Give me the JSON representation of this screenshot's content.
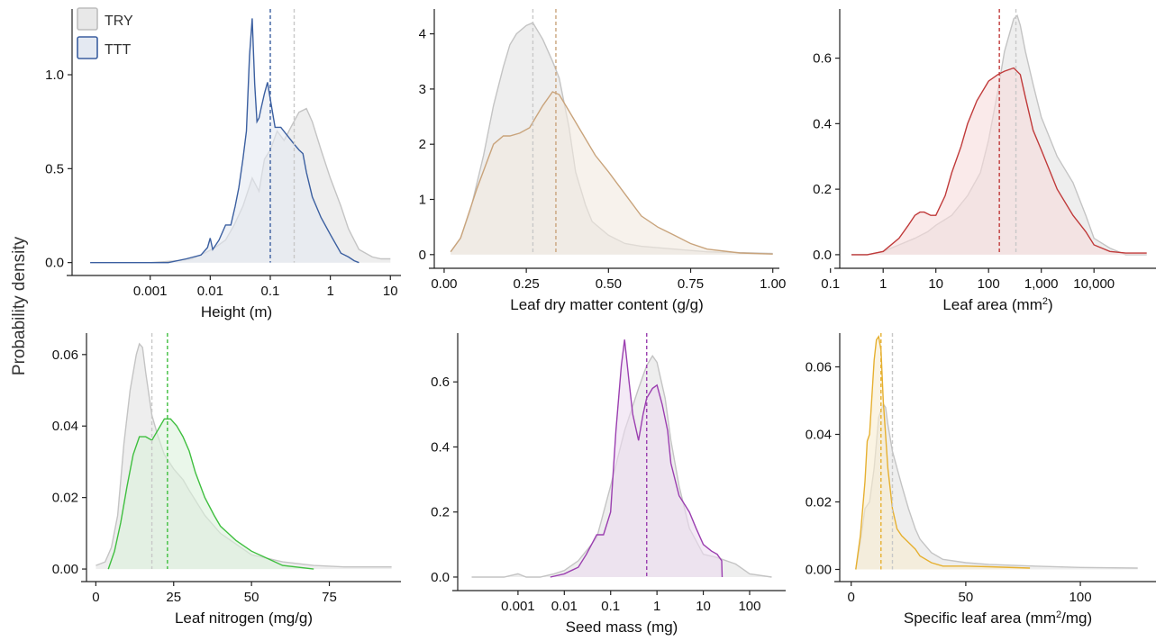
{
  "figure": {
    "y_axis_label": "Probability density",
    "legend": {
      "placement": "top-left",
      "entries": [
        {
          "name": "TRY",
          "fill": "#e8e8e8",
          "stroke": "#bdbdbd"
        },
        {
          "name": "TTT",
          "fill": "#e4e9f2",
          "stroke": "#3b5fa0"
        }
      ]
    }
  },
  "chart_data": [
    {
      "type": "area",
      "xlabel": "Height (m)",
      "xscale": "log",
      "xlim": [
        5e-05,
        15
      ],
      "ylim": [
        -0.04,
        1.35
      ],
      "xticks": [
        {
          "v": 0.001,
          "label": "0.001"
        },
        {
          "v": 0.01,
          "label": "0.01"
        },
        {
          "v": 0.1,
          "label": "0.1"
        },
        {
          "v": 1,
          "label": "1"
        },
        {
          "v": 10,
          "label": "10"
        }
      ],
      "yticks": [
        {
          "v": 0,
          "label": "0.0"
        },
        {
          "v": 0.5,
          "label": "0.5"
        },
        {
          "v": 1.0,
          "label": "1.0"
        }
      ],
      "color": "#3b5fa0",
      "fill": "#e4e9f2",
      "series": [
        {
          "name": "TRY",
          "x": [
            0.001,
            0.003,
            0.005,
            0.008,
            0.012,
            0.018,
            0.025,
            0.035,
            0.05,
            0.065,
            0.08,
            0.1,
            0.13,
            0.17,
            0.22,
            0.3,
            0.4,
            0.5,
            0.7,
            1,
            1.5,
            2,
            3,
            5,
            7,
            10
          ],
          "y": [
            0.0,
            0.01,
            0.02,
            0.05,
            0.08,
            0.12,
            0.2,
            0.3,
            0.45,
            0.38,
            0.55,
            0.6,
            0.7,
            0.65,
            0.72,
            0.8,
            0.82,
            0.75,
            0.6,
            0.45,
            0.3,
            0.18,
            0.07,
            0.03,
            0.02,
            0.02
          ]
        },
        {
          "name": "TTT",
          "x": [
            0.0001,
            0.0005,
            0.001,
            0.002,
            0.004,
            0.007,
            0.009,
            0.01,
            0.011,
            0.014,
            0.018,
            0.022,
            0.026,
            0.03,
            0.035,
            0.04,
            0.045,
            0.05,
            0.055,
            0.06,
            0.065,
            0.07,
            0.08,
            0.09,
            0.1,
            0.12,
            0.15,
            0.2,
            0.25,
            0.3,
            0.35,
            0.4,
            0.5,
            0.7,
            1,
            1.5,
            2,
            2.5,
            3
          ],
          "y": [
            0.0,
            0.0,
            0.0,
            0.0,
            0.02,
            0.04,
            0.08,
            0.13,
            0.07,
            0.12,
            0.2,
            0.2,
            0.3,
            0.4,
            0.55,
            0.7,
            1.1,
            1.3,
            0.95,
            0.75,
            0.77,
            0.82,
            0.9,
            0.96,
            0.87,
            0.72,
            0.72,
            0.67,
            0.63,
            0.6,
            0.58,
            0.48,
            0.35,
            0.24,
            0.15,
            0.05,
            0.03,
            0.01,
            0.0
          ]
        }
      ],
      "medians": [
        {
          "series": "TRY",
          "value": 0.25
        },
        {
          "series": "TTT",
          "value": 0.1
        }
      ]
    },
    {
      "type": "area",
      "xlabel": "Leaf dry matter content (g/g)",
      "xscale": "linear",
      "xlim": [
        -0.03,
        1.02
      ],
      "ylim": [
        -0.15,
        4.45
      ],
      "xticks": [
        {
          "v": 0,
          "label": "0.00"
        },
        {
          "v": 0.25,
          "label": "0.25"
        },
        {
          "v": 0.5,
          "label": "0.50"
        },
        {
          "v": 0.75,
          "label": "0.75"
        },
        {
          "v": 1,
          "label": "1.00"
        }
      ],
      "yticks": [
        {
          "v": 0,
          "label": "0"
        },
        {
          "v": 1,
          "label": "1"
        },
        {
          "v": 2,
          "label": "2"
        },
        {
          "v": 3,
          "label": "3"
        },
        {
          "v": 4,
          "label": "4"
        }
      ],
      "color": "#c9a47c",
      "fill": "#f1e9df",
      "series": [
        {
          "name": "TRY",
          "x": [
            0.02,
            0.05,
            0.08,
            0.12,
            0.15,
            0.18,
            0.2,
            0.22,
            0.25,
            0.27,
            0.3,
            0.33,
            0.35,
            0.38,
            0.4,
            0.43,
            0.45,
            0.5,
            0.55,
            0.6,
            0.7,
            0.8,
            1.0
          ],
          "y": [
            0.05,
            0.3,
            0.8,
            1.8,
            2.7,
            3.4,
            3.8,
            4.0,
            4.15,
            4.2,
            3.9,
            3.5,
            3.2,
            2.3,
            1.5,
            0.9,
            0.6,
            0.35,
            0.2,
            0.15,
            0.1,
            0.05,
            0.02
          ]
        },
        {
          "name": "TTT",
          "x": [
            0.02,
            0.05,
            0.1,
            0.15,
            0.18,
            0.2,
            0.23,
            0.26,
            0.28,
            0.3,
            0.33,
            0.35,
            0.38,
            0.42,
            0.46,
            0.5,
            0.55,
            0.6,
            0.65,
            0.7,
            0.75,
            0.8,
            0.9,
            1.0
          ],
          "y": [
            0.05,
            0.3,
            1.2,
            2.0,
            2.15,
            2.15,
            2.2,
            2.3,
            2.5,
            2.7,
            2.95,
            2.9,
            2.6,
            2.2,
            1.8,
            1.5,
            1.1,
            0.7,
            0.5,
            0.35,
            0.2,
            0.1,
            0.03,
            0.01
          ]
        }
      ],
      "medians": [
        {
          "series": "TRY",
          "value": 0.27
        },
        {
          "series": "TTT",
          "value": 0.34
        }
      ]
    },
    {
      "type": "area",
      "xlabel": "Leaf area (mm²)",
      "xscale": "log",
      "xlim": [
        0.15,
        150000
      ],
      "ylim": [
        -0.025,
        0.75
      ],
      "xticks": [
        {
          "v": 0.1,
          "label": "0.1"
        },
        {
          "v": 1,
          "label": "1"
        },
        {
          "v": 10,
          "label": "10"
        },
        {
          "v": 100,
          "label": "100"
        },
        {
          "v": 1000,
          "label": "1,000"
        },
        {
          "v": 10000,
          "label": "10,000"
        }
      ],
      "yticks": [
        {
          "v": 0,
          "label": "0.0"
        },
        {
          "v": 0.2,
          "label": "0.2"
        },
        {
          "v": 0.4,
          "label": "0.4"
        },
        {
          "v": 0.6,
          "label": "0.6"
        }
      ],
      "color": "#c03a3a",
      "fill": "#f6dcdc",
      "series": [
        {
          "name": "TRY",
          "x": [
            0.25,
            0.5,
            1,
            2,
            4,
            7,
            10,
            20,
            40,
            70,
            100,
            150,
            200,
            300,
            350,
            400,
            500,
            700,
            1000,
            2000,
            4000,
            7000,
            10000,
            20000,
            40000,
            100000
          ],
          "y": [
            0.0,
            0.0,
            0.01,
            0.03,
            0.05,
            0.07,
            0.09,
            0.12,
            0.18,
            0.25,
            0.35,
            0.5,
            0.62,
            0.72,
            0.73,
            0.7,
            0.62,
            0.52,
            0.42,
            0.3,
            0.22,
            0.12,
            0.05,
            0.02,
            0.0,
            0.0
          ]
        },
        {
          "name": "TTT",
          "x": [
            0.25,
            0.5,
            1,
            2,
            3,
            4,
            5,
            6,
            8,
            10,
            15,
            20,
            30,
            40,
            60,
            100,
            150,
            200,
            300,
            400,
            500,
            700,
            1000,
            2000,
            4000,
            7000,
            10000,
            20000,
            40000,
            100000
          ],
          "y": [
            0.0,
            0.0,
            0.01,
            0.05,
            0.09,
            0.12,
            0.13,
            0.13,
            0.12,
            0.12,
            0.18,
            0.25,
            0.33,
            0.4,
            0.47,
            0.53,
            0.55,
            0.56,
            0.57,
            0.55,
            0.48,
            0.38,
            0.32,
            0.2,
            0.12,
            0.07,
            0.03,
            0.01,
            0.005,
            0.005
          ]
        }
      ],
      "medians": [
        {
          "series": "TRY",
          "value": 330
        },
        {
          "series": "TTT",
          "value": 160
        }
      ]
    },
    {
      "type": "area",
      "xlabel": "Leaf nitrogen (mg/g)",
      "xscale": "linear",
      "xlim": [
        -3,
        98
      ],
      "ylim": [
        -0.002,
        0.066
      ],
      "xticks": [
        {
          "v": 0,
          "label": "0"
        },
        {
          "v": 25,
          "label": "25"
        },
        {
          "v": 50,
          "label": "50"
        },
        {
          "v": 75,
          "label": "75"
        }
      ],
      "yticks": [
        {
          "v": 0,
          "label": "0.00"
        },
        {
          "v": 0.02,
          "label": "0.02"
        },
        {
          "v": 0.04,
          "label": "0.04"
        },
        {
          "v": 0.06,
          "label": "0.06"
        }
      ],
      "color": "#3fbf3f",
      "fill": "#dcf2dc",
      "series": [
        {
          "name": "TRY",
          "x": [
            0,
            3,
            5,
            7,
            9,
            11,
            13,
            14,
            15,
            16,
            18,
            20,
            22,
            25,
            28,
            30,
            35,
            40,
            45,
            50,
            60,
            70,
            80,
            95
          ],
          "y": [
            0.001,
            0.002,
            0.006,
            0.015,
            0.035,
            0.05,
            0.06,
            0.063,
            0.062,
            0.055,
            0.043,
            0.037,
            0.032,
            0.028,
            0.025,
            0.022,
            0.015,
            0.01,
            0.007,
            0.004,
            0.002,
            0.001,
            0.0006,
            0.0006
          ]
        },
        {
          "name": "TTT",
          "x": [
            4,
            6,
            8,
            10,
            12,
            14,
            16,
            18,
            20,
            22,
            24,
            26,
            28,
            30,
            32,
            35,
            38,
            40,
            45,
            50,
            55,
            60,
            70
          ],
          "y": [
            0.0,
            0.005,
            0.013,
            0.023,
            0.032,
            0.037,
            0.037,
            0.036,
            0.039,
            0.042,
            0.042,
            0.04,
            0.037,
            0.033,
            0.027,
            0.02,
            0.015,
            0.012,
            0.008,
            0.005,
            0.003,
            0.001,
            0.0
          ]
        }
      ],
      "medians": [
        {
          "series": "TRY",
          "value": 18
        },
        {
          "series": "TTT",
          "value": 23
        }
      ]
    },
    {
      "type": "area",
      "xlabel": "Seed mass (mg)",
      "xscale": "log",
      "xlim": [
        5e-05,
        600
      ],
      "ylim": [
        -0.025,
        0.75
      ],
      "xticks": [
        {
          "v": 0.001,
          "label": "0.001"
        },
        {
          "v": 0.01,
          "label": "0.01"
        },
        {
          "v": 0.1,
          "label": "0.1"
        },
        {
          "v": 1,
          "label": "1"
        },
        {
          "v": 10,
          "label": "10"
        },
        {
          "v": 100,
          "label": "100"
        }
      ],
      "yticks": [
        {
          "v": 0,
          "label": "0.0"
        },
        {
          "v": 0.2,
          "label": "0.2"
        },
        {
          "v": 0.4,
          "label": "0.4"
        },
        {
          "v": 0.6,
          "label": "0.6"
        }
      ],
      "color": "#9b3fb0",
      "fill": "#ecdcf0",
      "series": [
        {
          "name": "TRY",
          "x": [
            0.0001,
            0.0005,
            0.001,
            0.0015,
            0.003,
            0.006,
            0.01,
            0.02,
            0.05,
            0.1,
            0.2,
            0.4,
            0.6,
            0.8,
            1,
            1.5,
            2,
            3,
            5,
            10,
            20,
            50,
            100,
            300
          ],
          "y": [
            0.0,
            0.0,
            0.01,
            0.0,
            0.0,
            0.01,
            0.02,
            0.05,
            0.12,
            0.28,
            0.45,
            0.58,
            0.65,
            0.68,
            0.66,
            0.55,
            0.42,
            0.28,
            0.15,
            0.07,
            0.06,
            0.04,
            0.01,
            0.0
          ]
        },
        {
          "name": "TTT",
          "x": [
            0.005,
            0.01,
            0.02,
            0.03,
            0.05,
            0.07,
            0.1,
            0.13,
            0.17,
            0.2,
            0.25,
            0.3,
            0.4,
            0.5,
            0.6,
            0.8,
            1,
            1.3,
            1.7,
            2,
            3,
            5,
            7,
            10,
            15,
            20,
            25,
            25.5
          ],
          "y": [
            0.0,
            0.01,
            0.03,
            0.07,
            0.13,
            0.13,
            0.2,
            0.45,
            0.65,
            0.73,
            0.6,
            0.5,
            0.42,
            0.5,
            0.55,
            0.58,
            0.59,
            0.53,
            0.45,
            0.35,
            0.25,
            0.2,
            0.15,
            0.1,
            0.08,
            0.07,
            0.05,
            0.0
          ]
        }
      ],
      "medians": [
        {
          "series": "TRY",
          "value": 0.6
        },
        {
          "series": "TTT",
          "value": 0.6
        }
      ]
    },
    {
      "type": "area",
      "xlabel": "Specific leaf area (mm²/mg)",
      "xscale": "linear",
      "xlim": [
        -5,
        133
      ],
      "ylim": [
        -0.002,
        0.07
      ],
      "xticks": [
        {
          "v": 0,
          "label": "0"
        },
        {
          "v": 50,
          "label": "50"
        },
        {
          "v": 100,
          "label": "100"
        }
      ],
      "yticks": [
        {
          "v": 0,
          "label": "0.00"
        },
        {
          "v": 0.02,
          "label": "0.02"
        },
        {
          "v": 0.04,
          "label": "0.04"
        },
        {
          "v": 0.06,
          "label": "0.06"
        }
      ],
      "color": "#e6b030",
      "fill": "#f9ecd0",
      "series": [
        {
          "name": "TRY",
          "x": [
            2,
            4,
            6,
            8,
            10,
            12,
            14,
            15,
            16,
            18,
            20,
            22,
            25,
            28,
            30,
            35,
            40,
            50,
            60,
            80,
            100,
            125
          ],
          "y": [
            0.0,
            0.008,
            0.018,
            0.02,
            0.03,
            0.045,
            0.049,
            0.048,
            0.043,
            0.035,
            0.03,
            0.025,
            0.018,
            0.012,
            0.009,
            0.005,
            0.003,
            0.002,
            0.0015,
            0.001,
            0.0006,
            0.0004
          ]
        },
        {
          "name": "TTT",
          "x": [
            2,
            4,
            6,
            7,
            8,
            10,
            11,
            12,
            13,
            14,
            16,
            18,
            20,
            22,
            25,
            28,
            30,
            35,
            40,
            50,
            60,
            78
          ],
          "y": [
            0.0,
            0.01,
            0.026,
            0.038,
            0.04,
            0.062,
            0.068,
            0.069,
            0.065,
            0.05,
            0.03,
            0.018,
            0.012,
            0.01,
            0.008,
            0.006,
            0.004,
            0.002,
            0.001,
            0.001,
            0.0008,
            0.0004
          ]
        }
      ],
      "medians": [
        {
          "series": "TRY",
          "value": 18
        },
        {
          "series": "TTT",
          "value": 13
        }
      ]
    }
  ]
}
